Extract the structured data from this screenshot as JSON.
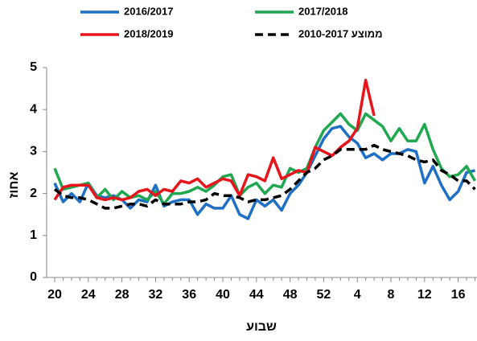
{
  "chart_data": {
    "type": "line",
    "categories": [
      "20",
      null,
      null,
      null,
      "24",
      null,
      null,
      null,
      "28",
      null,
      null,
      null,
      "32",
      null,
      null,
      null,
      "36",
      null,
      null,
      null,
      "40",
      null,
      null,
      null,
      "44",
      null,
      null,
      null,
      "48",
      null,
      null,
      null,
      "52",
      null,
      null,
      null,
      "4",
      null,
      null,
      null,
      "8",
      null,
      null,
      null,
      "12",
      null,
      null,
      null,
      "16",
      null,
      null
    ],
    "series": [
      {
        "name": "2016/2017",
        "color": "#1f6fc5",
        "values": [
          2.25,
          1.8,
          2.0,
          1.8,
          2.25,
          1.95,
          1.9,
          1.95,
          1.85,
          1.65,
          1.85,
          1.8,
          2.2,
          1.7,
          1.8,
          1.85,
          1.85,
          1.5,
          1.75,
          1.65,
          1.65,
          1.95,
          1.5,
          1.4,
          1.85,
          1.7,
          1.85,
          1.6,
          2.0,
          2.2,
          2.5,
          2.9,
          3.3,
          3.55,
          3.6,
          3.35,
          3.2,
          2.85,
          2.95,
          2.8,
          2.95,
          2.95,
          3.05,
          3.0,
          2.25,
          2.65,
          2.2,
          1.85,
          2.05,
          2.5,
          2.55
        ]
      },
      {
        "name": "2017/2018",
        "color": "#1fa84f",
        "values": [
          2.6,
          2.1,
          2.15,
          2.2,
          2.25,
          1.9,
          2.1,
          1.85,
          2.05,
          1.9,
          1.95,
          1.85,
          2.05,
          1.75,
          2.0,
          2.0,
          2.05,
          2.15,
          2.05,
          2.2,
          2.4,
          2.45,
          1.95,
          2.15,
          2.25,
          2.0,
          2.2,
          2.15,
          2.6,
          2.5,
          2.6,
          3.1,
          3.5,
          3.7,
          3.9,
          3.65,
          3.5,
          3.9,
          3.75,
          3.6,
          3.25,
          3.55,
          3.25,
          3.25,
          3.65,
          3.05,
          2.6,
          2.4,
          2.45,
          2.65,
          2.3
        ]
      },
      {
        "name": "2018/2019",
        "color": "#e8141b",
        "values": [
          1.85,
          2.15,
          2.2,
          2.2,
          2.2,
          1.9,
          1.85,
          1.9,
          1.85,
          1.9,
          2.05,
          2.1,
          1.95,
          2.1,
          2.05,
          2.3,
          2.25,
          2.35,
          2.15,
          2.25,
          2.35,
          2.3,
          1.95,
          2.45,
          2.4,
          2.3,
          2.85,
          2.35,
          2.45,
          2.55,
          2.5,
          3.1,
          3.0,
          2.9,
          3.1,
          3.25,
          3.55,
          4.7,
          3.85,
          null,
          null,
          null,
          null,
          null,
          null,
          null,
          null,
          null,
          null,
          null,
          null
        ]
      },
      {
        "name": "2010-2017 ממוצע",
        "color": "#000000",
        "dashed": true,
        "values": [
          2.1,
          1.95,
          1.9,
          1.9,
          1.85,
          1.75,
          1.65,
          1.65,
          1.7,
          1.75,
          1.75,
          1.7,
          1.85,
          1.75,
          1.75,
          1.75,
          1.8,
          1.8,
          1.85,
          2.0,
          1.95,
          1.95,
          1.9,
          1.8,
          1.85,
          1.85,
          1.9,
          1.95,
          2.1,
          2.3,
          2.5,
          2.6,
          2.8,
          2.9,
          3.05,
          3.05,
          3.05,
          3.05,
          3.15,
          3.05,
          3.0,
          2.95,
          2.9,
          2.8,
          2.75,
          2.8,
          2.55,
          2.45,
          2.3,
          2.3,
          2.1
        ]
      }
    ],
    "y_label": "אחוז",
    "x_label": "שבוע",
    "ylim": [
      0,
      5
    ],
    "yticks": [
      0,
      1,
      2,
      3,
      4,
      5
    ],
    "grid": false
  }
}
